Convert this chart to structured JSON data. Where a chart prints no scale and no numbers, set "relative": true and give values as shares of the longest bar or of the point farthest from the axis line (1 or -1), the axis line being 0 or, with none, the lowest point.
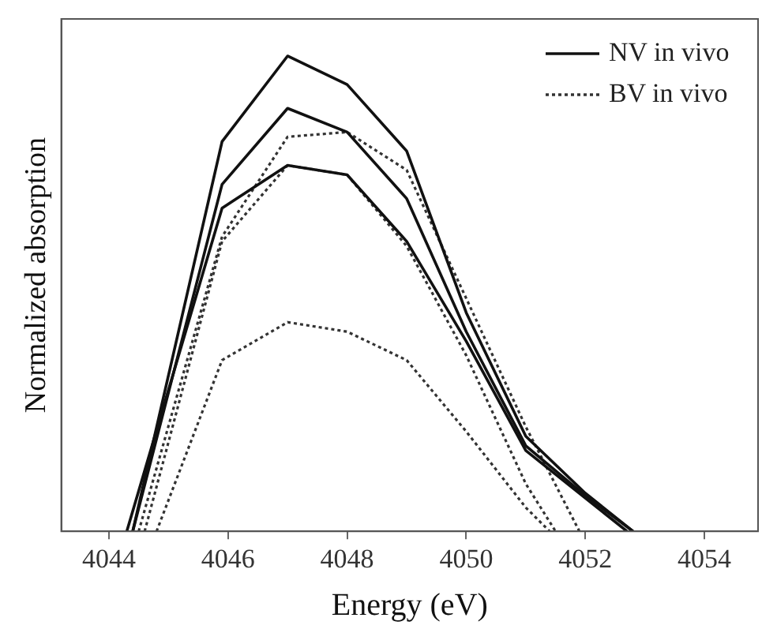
{
  "chart_data": {
    "type": "line",
    "xlabel": "Energy (eV)",
    "ylabel": "Normalized absorption",
    "relative": true,
    "xlim": [
      4043.2,
      4054.9
    ],
    "xticks": [
      4044,
      4046,
      4048,
      4050,
      4052,
      4054
    ],
    "grid": false,
    "legend": "top right",
    "marker": "none",
    "series": [
      {
        "name": "NV in vivo",
        "color": "#111111",
        "line_style": "solid",
        "x": [
          4044.4,
          4045.9,
          4047,
          4048,
          4049,
          4050,
          4051,
          4052,
          4052.8
        ],
        "values": [
          0,
          0.82,
          1.0,
          0.94,
          0.8,
          0.46,
          0.2,
          0.08,
          0
        ]
      },
      {
        "color": "#111111",
        "line_style": "solid",
        "x": [
          4044.4,
          4045.9,
          4047,
          4048,
          4049,
          4050,
          4051,
          4052,
          4052.8
        ],
        "values": [
          0,
          0.73,
          0.89,
          0.84,
          0.7,
          0.42,
          0.18,
          0.075,
          0
        ]
      },
      {
        "color": "#111111",
        "line_style": "solid",
        "x": [
          4044.3,
          4045.9,
          4047,
          4048,
          4049,
          4050,
          4051,
          4052,
          4052.7
        ],
        "values": [
          0,
          0.68,
          0.77,
          0.75,
          0.61,
          0.4,
          0.17,
          0.07,
          0
        ]
      },
      {
        "name": "BV in vivo",
        "color": "#333333",
        "line_style": "dotted",
        "x": [
          4044.5,
          4045.9,
          4047,
          4048,
          4049,
          4050,
          4051,
          4051.9
        ],
        "values": [
          0,
          0.62,
          0.83,
          0.84,
          0.76,
          0.49,
          0.22,
          0
        ]
      },
      {
        "color": "#333333",
        "line_style": "dotted",
        "x": [
          4044.6,
          4045.9,
          4047,
          4048,
          4049,
          4050,
          4051,
          4051.5
        ],
        "values": [
          0,
          0.61,
          0.77,
          0.75,
          0.6,
          0.37,
          0.1,
          0
        ]
      },
      {
        "color": "#333333",
        "line_style": "dotted",
        "x": [
          4044.8,
          4045.9,
          4047,
          4048,
          4049,
          4050,
          4051,
          4051.4
        ],
        "values": [
          0,
          0.36,
          0.44,
          0.42,
          0.36,
          0.21,
          0.05,
          0
        ]
      }
    ]
  }
}
